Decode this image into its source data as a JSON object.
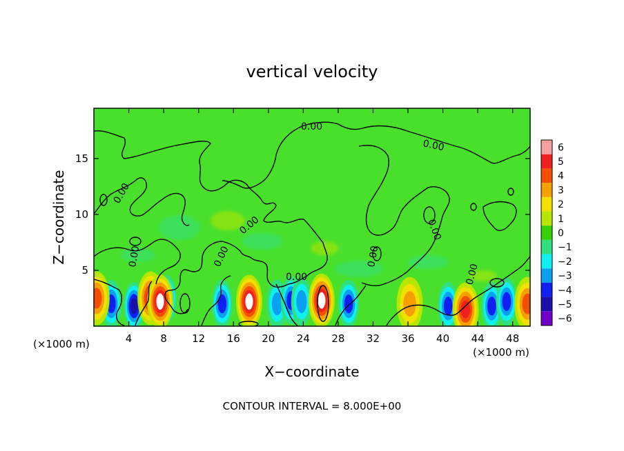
{
  "chart_data": {
    "type": "heatmap",
    "title": "vertical velocity",
    "xlabel": "X−coordinate",
    "ylabel": "Z−coordinate",
    "x_unit_left": "(×1000 m)",
    "x_unit_right": "(×1000 m)",
    "xlim": [
      0,
      50
    ],
    "ylim": [
      0,
      19.5
    ],
    "x_ticks": [
      4,
      8,
      12,
      16,
      20,
      24,
      28,
      32,
      36,
      40,
      44,
      48
    ],
    "y_ticks": [
      5,
      10,
      15
    ],
    "contour_label": "0.00",
    "footer": "CONTOUR INTERVAL = 8.000E+00",
    "colorbar": {
      "levels": [
        6,
        5,
        4,
        3,
        2,
        1,
        0,
        -1,
        -2,
        -3,
        -4,
        -5,
        -6
      ],
      "labels": [
        "6",
        "5",
        "4",
        "3",
        "2",
        "1",
        "0",
        "−1",
        "−2",
        "−3",
        "−4",
        "−5",
        "−6"
      ],
      "colors": [
        "#f4a0a0",
        "#ee2020",
        "#f25000",
        "#f5a000",
        "#f2e000",
        "#b8e600",
        "#34d000",
        "#30e080",
        "#10f0f0",
        "#0aa0f0",
        "#1020f0",
        "#1a10a8",
        "#7000c8"
      ]
    },
    "background_color": "#49e02c",
    "updraft_cores": [
      {
        "x": 0.3,
        "z": 2.5,
        "w": 3.5
      },
      {
        "x": 6.5,
        "z": 2.5,
        "w": 5.0
      },
      {
        "x": 7.6,
        "z": 2.2,
        "w": 5.8
      },
      {
        "x": 17.8,
        "z": 2.2,
        "w": 6.0
      },
      {
        "x": 26.1,
        "z": 2.3,
        "w": 6.0
      },
      {
        "x": 36.2,
        "z": 2.0,
        "w": 3.0
      },
      {
        "x": 42.6,
        "z": 1.5,
        "w": 4.5
      },
      {
        "x": 49.7,
        "z": 2.0,
        "w": 4.0
      }
    ],
    "downdraft_cores": [
      {
        "x": 2.0,
        "z": 2.0,
        "w": -4.0
      },
      {
        "x": 4.6,
        "z": 1.8,
        "w": -4.5
      },
      {
        "x": 8.3,
        "z": 2.4,
        "w": -5.0
      },
      {
        "x": 14.7,
        "z": 2.0,
        "w": -4.0
      },
      {
        "x": 21.0,
        "z": 2.0,
        "w": -2.5
      },
      {
        "x": 22.6,
        "z": 2.3,
        "w": -3.5
      },
      {
        "x": 23.8,
        "z": 2.2,
        "w": -3.0
      },
      {
        "x": 29.2,
        "z": 2.0,
        "w": -3.5
      },
      {
        "x": 40.6,
        "z": 1.8,
        "w": -4.0
      },
      {
        "x": 45.6,
        "z": 1.8,
        "w": -4.0
      },
      {
        "x": 47.3,
        "z": 2.2,
        "w": -3.5
      }
    ]
  }
}
